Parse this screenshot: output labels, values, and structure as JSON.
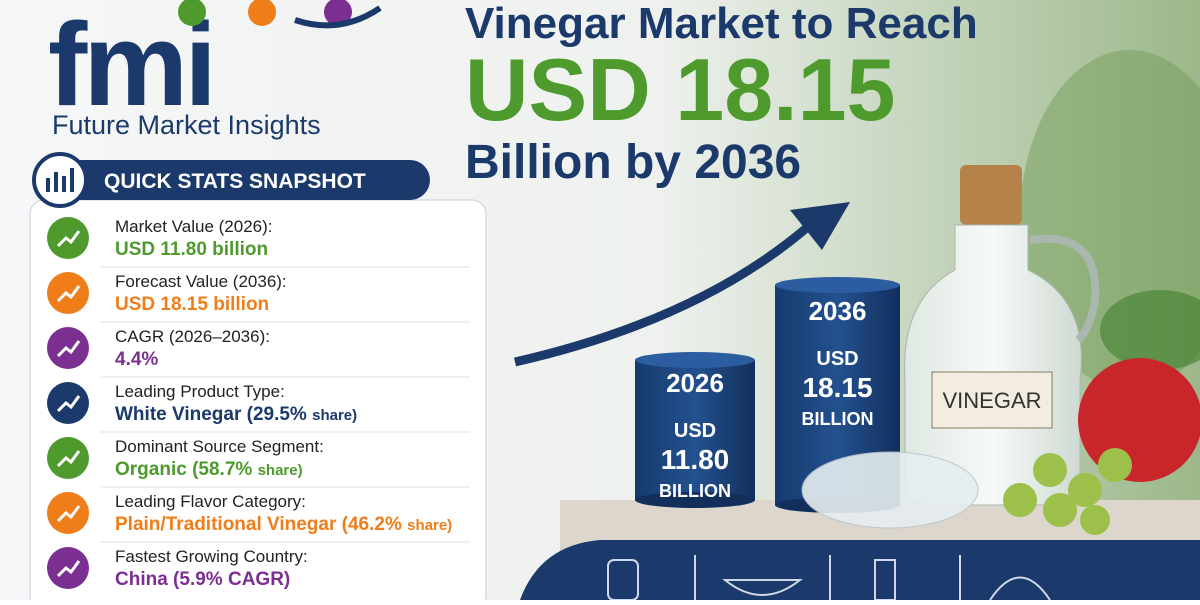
{
  "brand": {
    "logo": "fmi",
    "name": "Future Market Insights"
  },
  "headline": {
    "line1": "Vinegar Market to Reach",
    "line2": "USD 18.15",
    "line3": "Billion by 2036"
  },
  "snapshot": {
    "title": "QUICK STATS SNAPSHOT",
    "items": [
      {
        "label": "Market Value (2026):",
        "value": "USD 11.80 billion",
        "color": "#4e9a2c"
      },
      {
        "label": "Forecast Value (2036):",
        "value": "USD 18.15 billion",
        "color": "#ef7d1a"
      },
      {
        "label": "CAGR (2026–2036):",
        "value": "4.4%",
        "color": "#7b2f91"
      },
      {
        "label": "Leading Product Type:",
        "value": "White Vinegar (29.5%",
        "note": "share)",
        "color": "#1b3a6b"
      },
      {
        "label": "Dominant Source Segment:",
        "value": "Organic (58.7%",
        "note": "share)",
        "color": "#4e9a2c"
      },
      {
        "label": "Leading Flavor Category:",
        "value": "Plain/Traditional Vinegar (46.2%",
        "note": "share)",
        "color": "#ef7d1a"
      },
      {
        "label": "Fastest Growing Country:",
        "value": "China (5.9% CAGR)",
        "color": "#7b2f91"
      }
    ]
  },
  "bars": [
    {
      "year": "2026",
      "currency": "USD",
      "amount": "11.80",
      "unit": "BILLION"
    },
    {
      "year": "2036",
      "currency": "USD",
      "amount": "18.15",
      "unit": "BILLION"
    }
  ],
  "bottle_label": "VINEGAR"
}
